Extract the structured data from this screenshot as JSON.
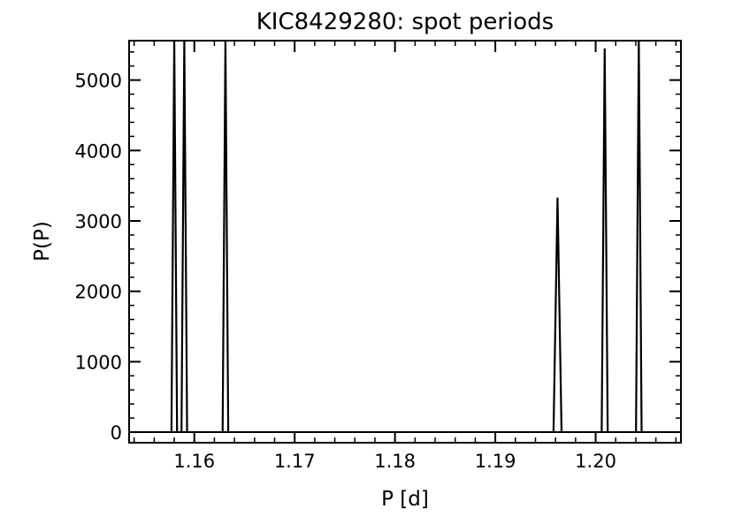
{
  "chart_data": {
    "type": "line",
    "title": "KIC8429280: spot periods",
    "xlabel": "P [d]",
    "ylabel": "P(P)",
    "xlim": [
      1.1535,
      1.2085
    ],
    "ylim": [
      -150,
      5560
    ],
    "xticks": [
      1.16,
      1.17,
      1.18,
      1.19,
      1.2
    ],
    "xtick_labels": [
      "1.16",
      "1.17",
      "1.18",
      "1.19",
      "1.20"
    ],
    "yticks": [
      0,
      1000,
      2000,
      3000,
      4000,
      5000
    ],
    "ytick_labels": [
      "0",
      "1000",
      "2000",
      "3000",
      "4000",
      "5000"
    ],
    "x_minor_step": 0.002,
    "y_minor_step": 200,
    "grid": false,
    "series": [
      {
        "peaks": [
          {
            "center": 1.158,
            "height": 5560,
            "halfwidth": 0.00028
          },
          {
            "center": 1.159,
            "height": 5560,
            "halfwidth": 0.00028
          },
          {
            "center": 1.1631,
            "height": 5560,
            "halfwidth": 0.00028
          },
          {
            "center": 1.1962,
            "height": 3330,
            "halfwidth": 0.0004
          },
          {
            "center": 1.2009,
            "height": 5450,
            "halfwidth": 0.0003
          },
          {
            "center": 1.2043,
            "height": 5560,
            "halfwidth": 0.00028
          }
        ]
      }
    ]
  }
}
